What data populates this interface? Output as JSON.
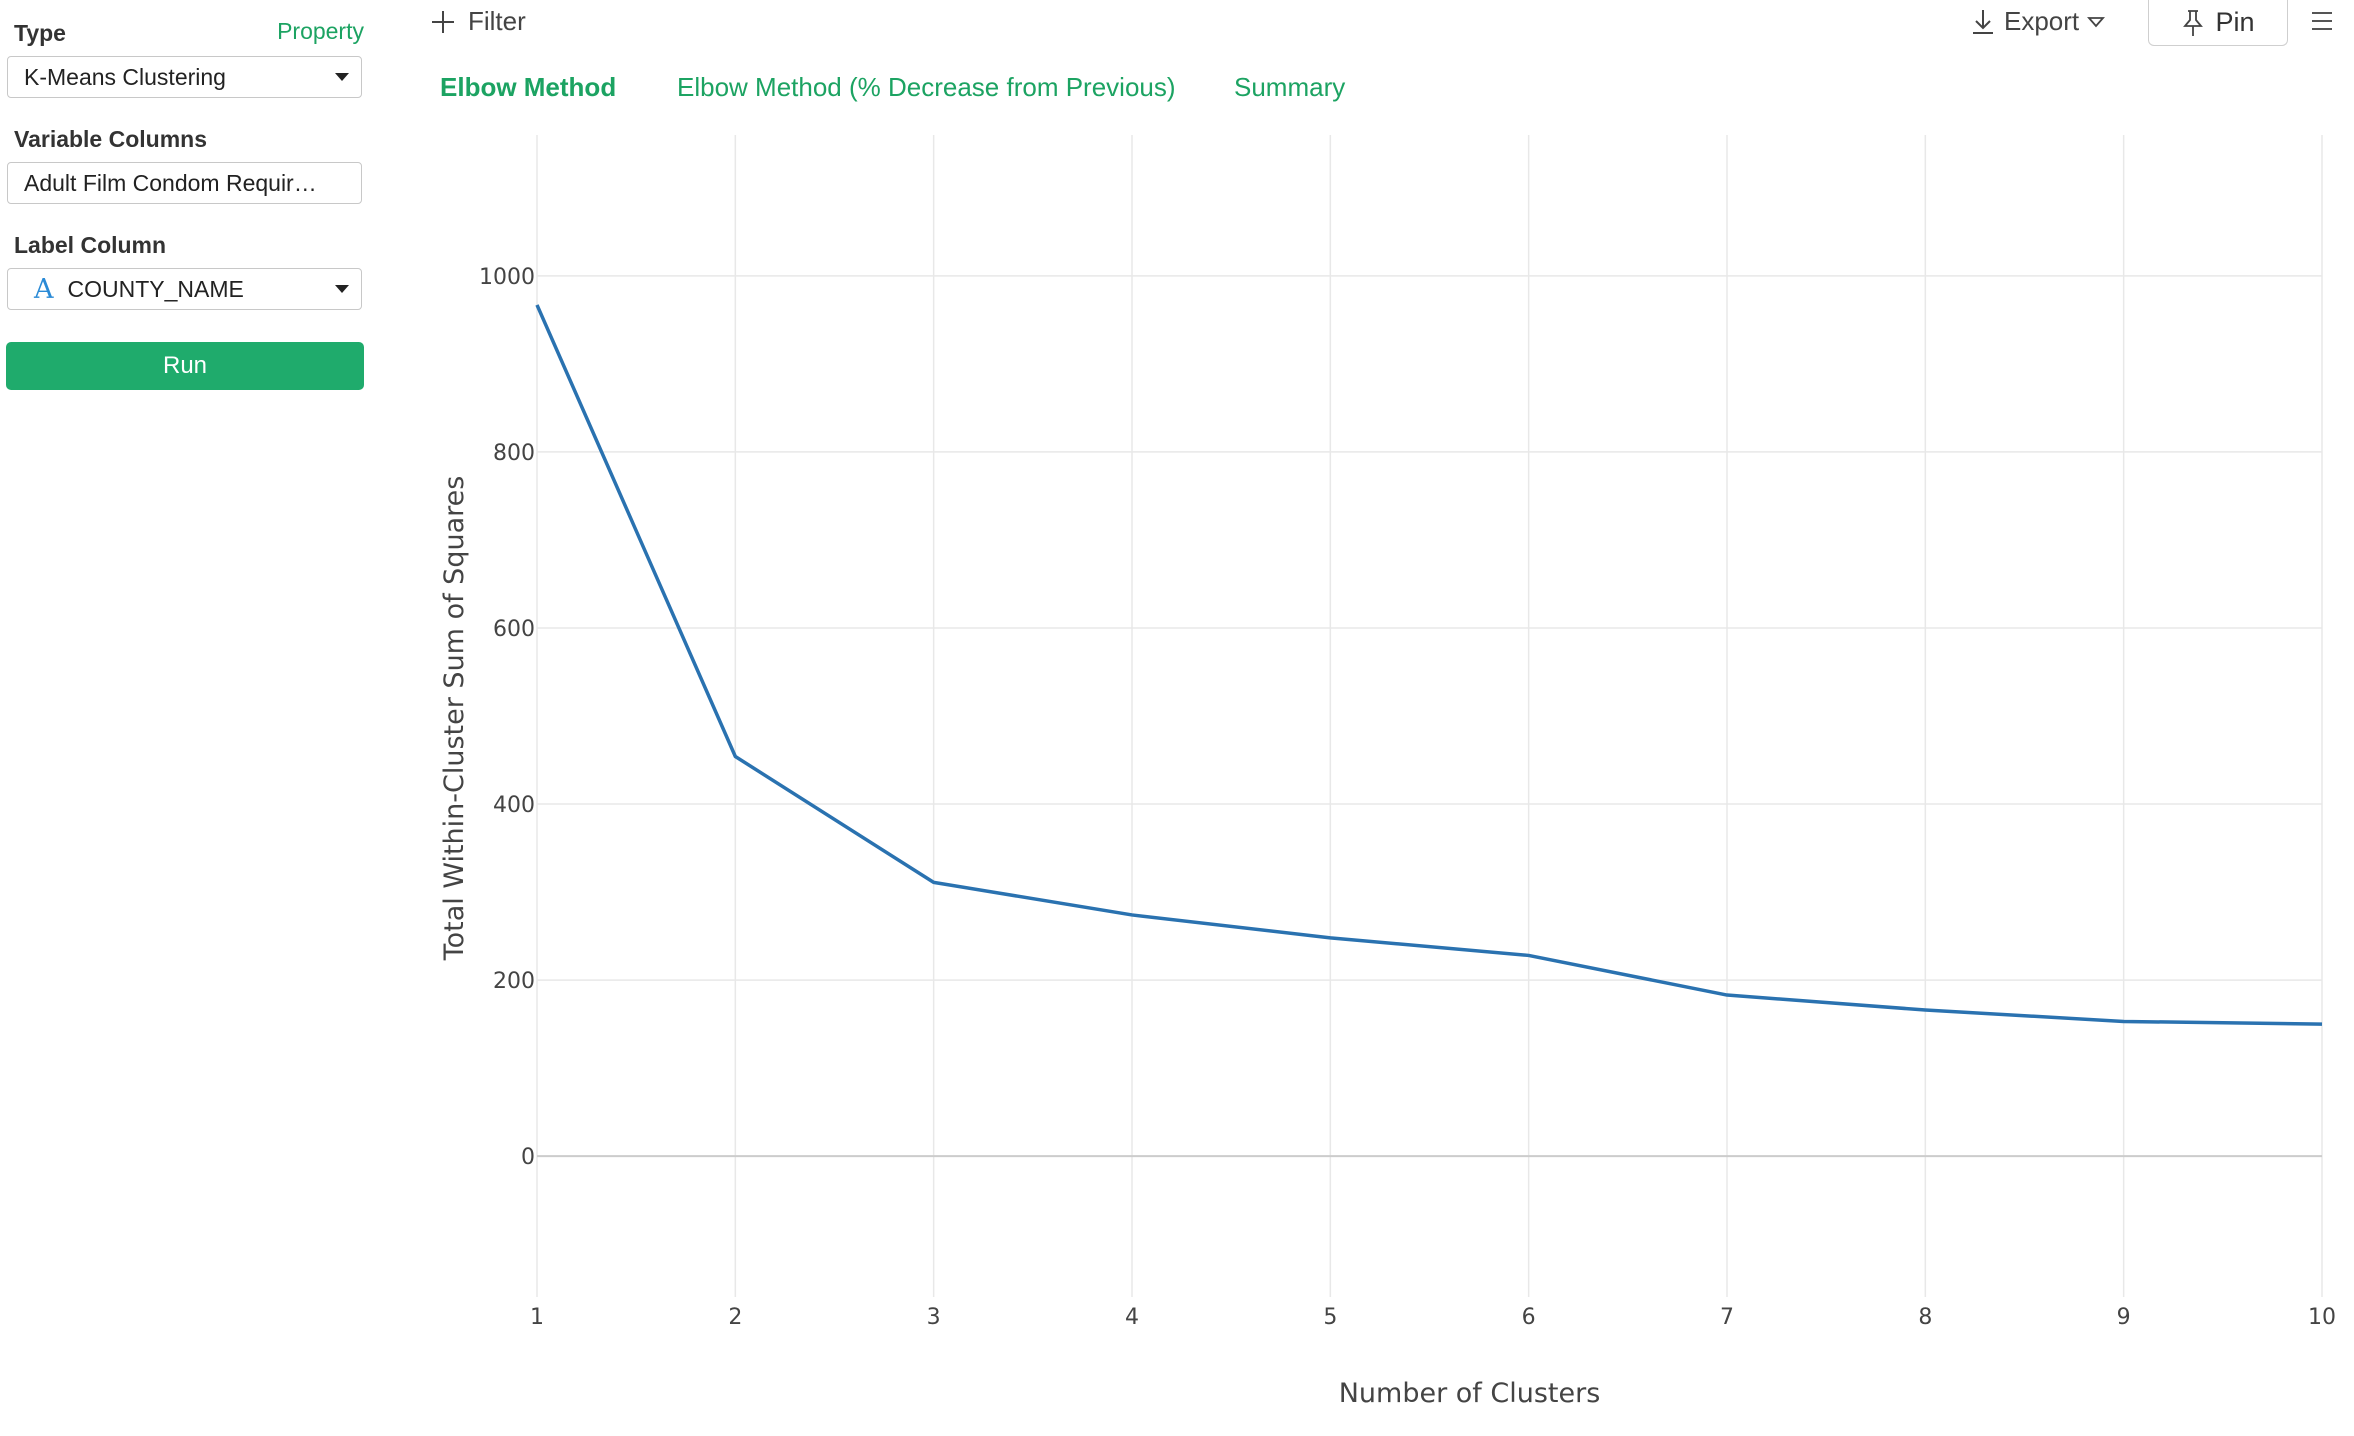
{
  "sidebar": {
    "type_label": "Type",
    "property_link": "Property",
    "type_value": "K-Means Clustering",
    "variable_columns_label": "Variable Columns",
    "variable_columns_value": "Adult Film Condom Requir…",
    "label_column_label": "Label Column",
    "label_column_type_glyph": "A",
    "label_column_value": "COUNTY_NAME",
    "run_label": "Run"
  },
  "topbar": {
    "filter_label": "Filter",
    "export_label": "Export",
    "pin_label": "Pin"
  },
  "tabs": [
    {
      "label": "Elbow Method",
      "active": true
    },
    {
      "label": "Elbow Method (% Decrease from Previous)",
      "active": false
    },
    {
      "label": "Summary",
      "active": false
    }
  ],
  "colors": {
    "accent": "#1ca362",
    "run_button": "#1fab6c",
    "line": "#2a72b0",
    "grid": "#e8e8e8",
    "zero_line": "#cccccc"
  },
  "chart_data": {
    "type": "line",
    "xlabel": "Number of Clusters",
    "ylabel": "Total Within-Cluster Sum of Squares",
    "x": [
      1,
      2,
      3,
      4,
      5,
      6,
      7,
      8,
      9,
      10
    ],
    "y": [
      967,
      454,
      311,
      274,
      248,
      228,
      183,
      166,
      153,
      150
    ],
    "xticks": [
      "1",
      "2",
      "3",
      "4",
      "5",
      "6",
      "7",
      "8",
      "9",
      "10"
    ],
    "yticks": [
      "0",
      "200",
      "400",
      "600",
      "800",
      "1000"
    ],
    "ytick_values": [
      0,
      200,
      400,
      600,
      800,
      1000
    ],
    "xlim": [
      1,
      10
    ],
    "ylim": [
      -160,
      1160
    ],
    "grid": true,
    "legend": "none"
  }
}
